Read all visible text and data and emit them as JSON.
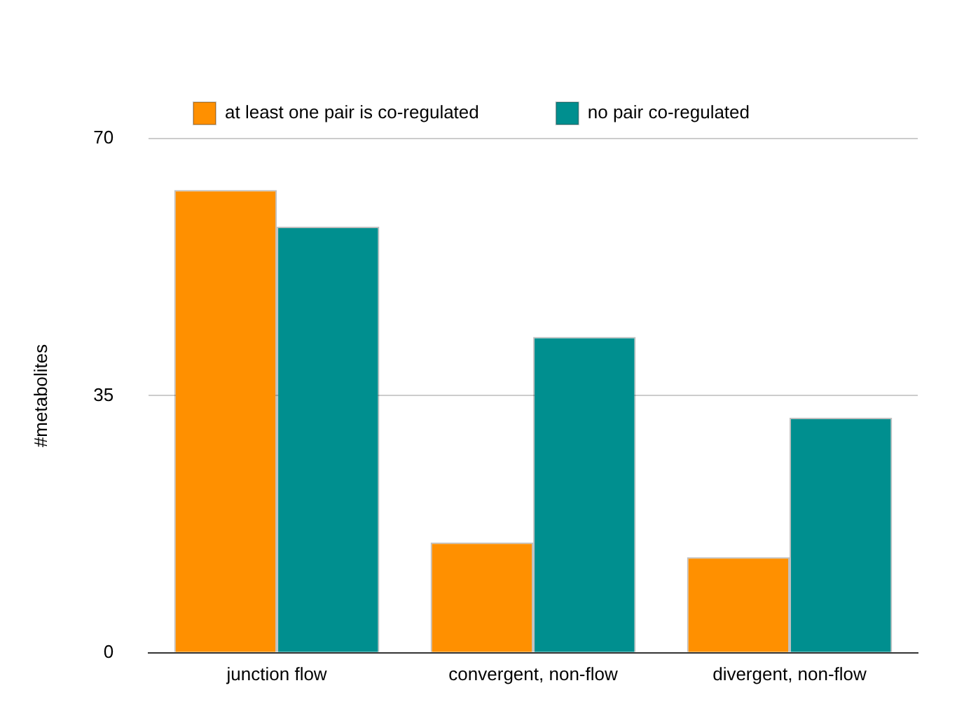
{
  "chart_data": {
    "type": "bar",
    "ylabel": "#metabolites",
    "categories": [
      "junction flow",
      "convergent, non-flow",
      "divergent, non-flow"
    ],
    "series": [
      {
        "name": "at least one pair is co-regulated",
        "color": "#ff9000",
        "values": [
          63,
          15,
          13
        ]
      },
      {
        "name": "no pair co-regulated",
        "color": "#008f8f",
        "values": [
          58,
          43,
          32
        ]
      }
    ],
    "ylim": [
      0,
      70
    ],
    "yticks": [
      0,
      35,
      70
    ],
    "grid": "y",
    "legend": "top"
  }
}
